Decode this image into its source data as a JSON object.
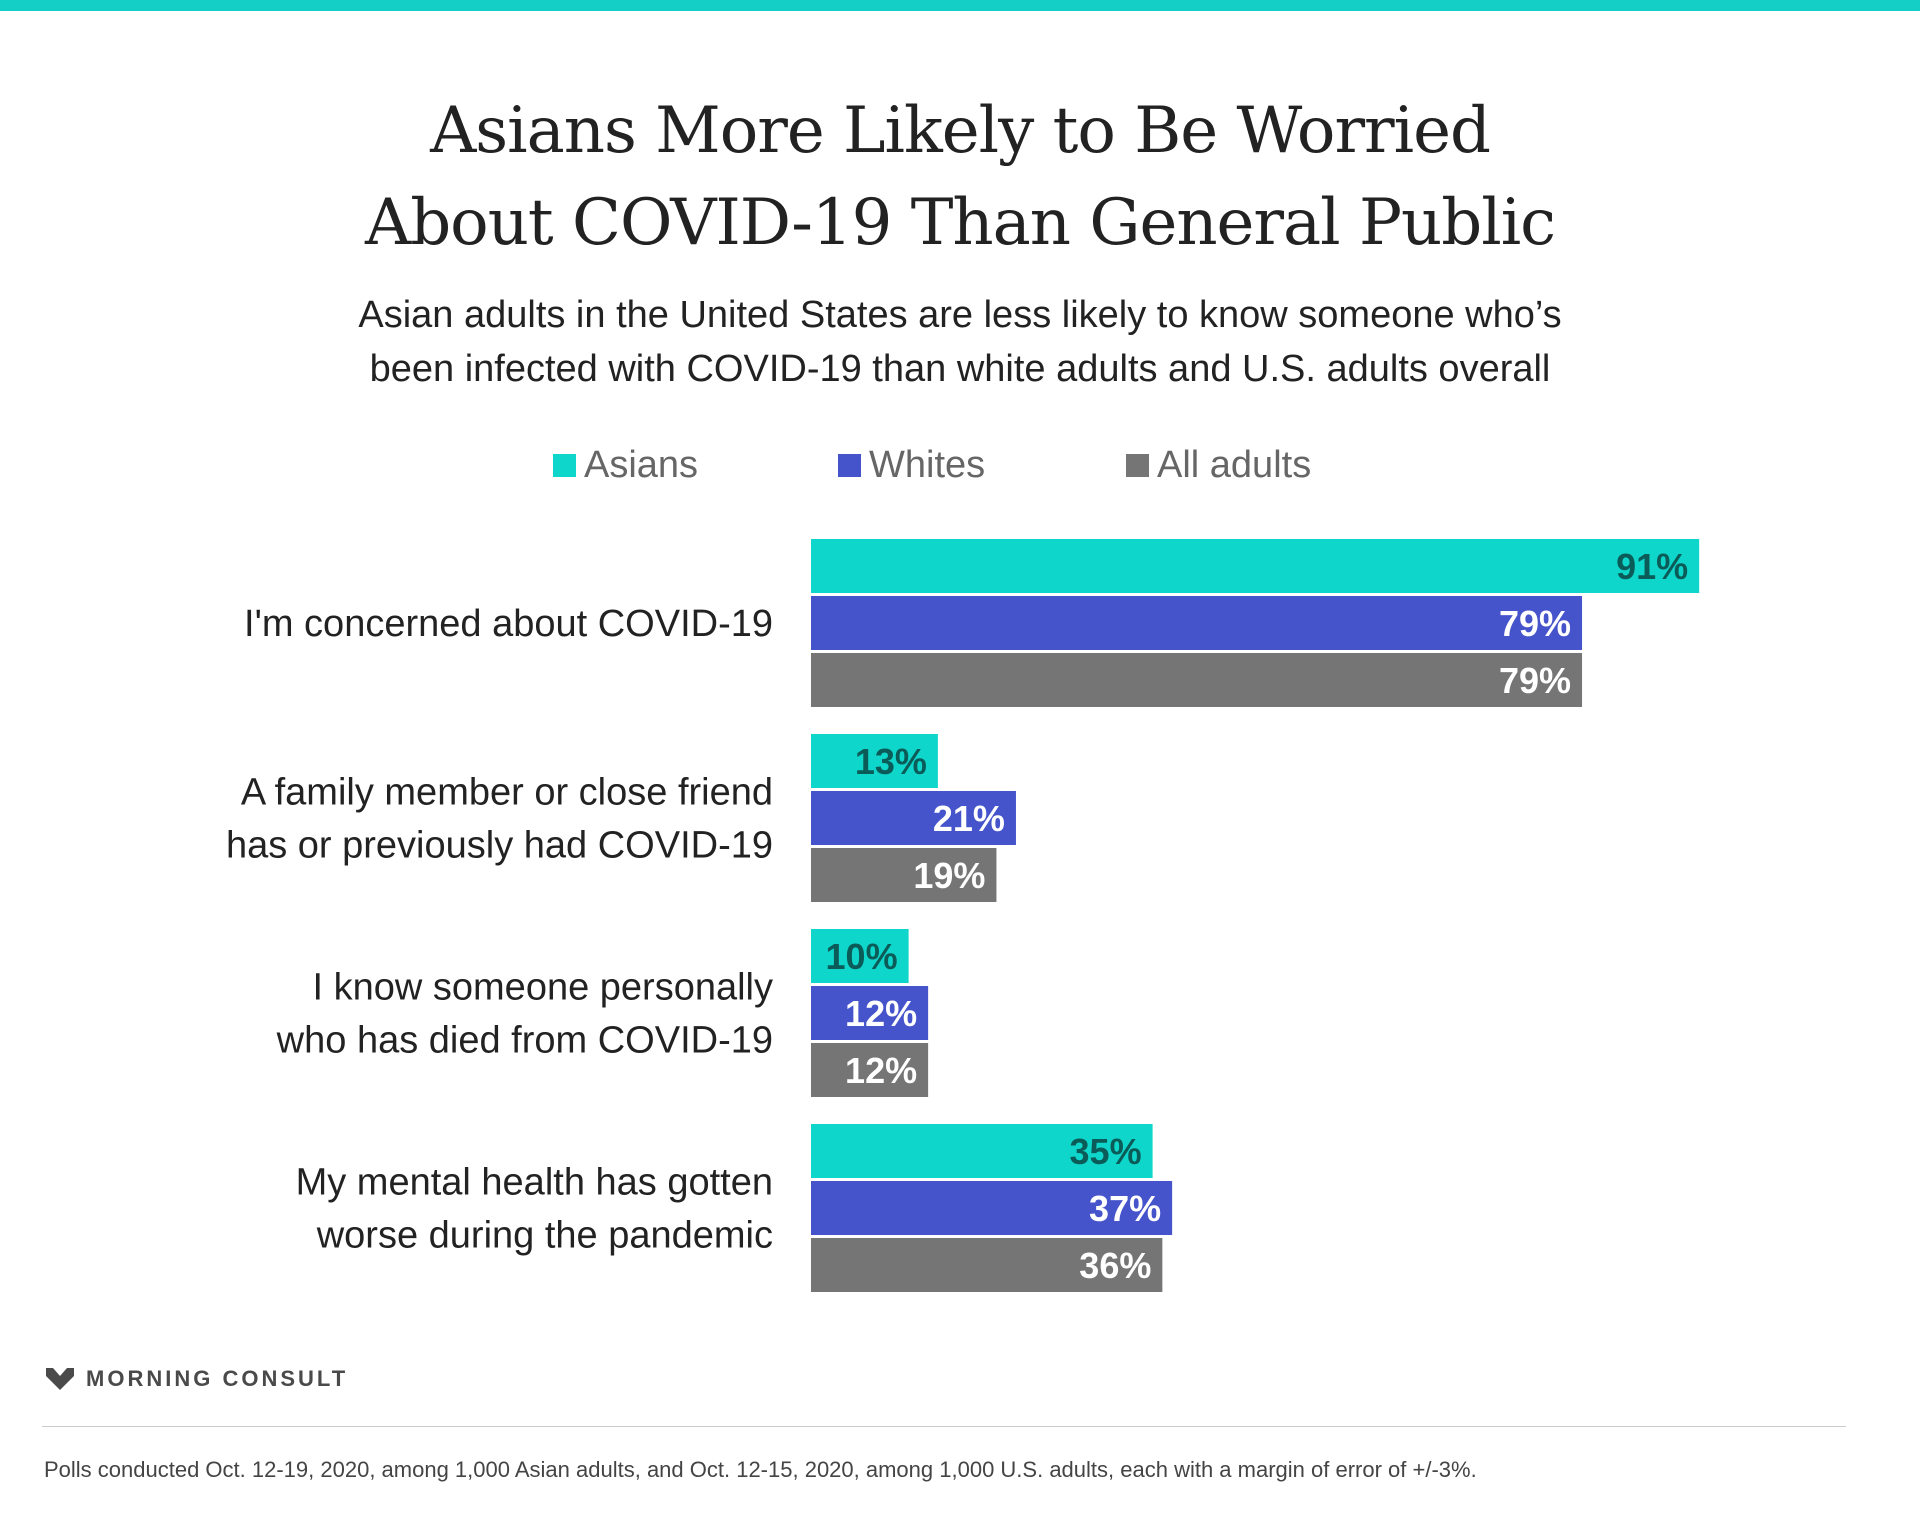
{
  "header": {
    "title_lines": [
      "Asians More Likely to Be Worried",
      "About COVID-19 Than General Public"
    ],
    "subtitle_lines": [
      "Asian adults in the United States are less likely to know someone who’s",
      "been infected with COVID-19 than white adults and U.S. adults overall"
    ]
  },
  "colors": {
    "accent": "#13cfc5",
    "asians": "#0fd6cb",
    "whites": "#4654cc",
    "all_adults": "#757575"
  },
  "chart_data": {
    "type": "bar",
    "orientation": "horizontal",
    "categories": [
      [
        "I'm concerned about COVID-19"
      ],
      [
        "A family member or close friend",
        "has or previously had COVID-19"
      ],
      [
        "I know someone personally",
        "who has died from COVID-19"
      ],
      [
        "My mental health has gotten",
        "worse during the pandemic"
      ]
    ],
    "series": [
      {
        "name": "Asians",
        "color": "#0fd6cb",
        "values": [
          91,
          13,
          10,
          35
        ],
        "labels": [
          "91%",
          "13%",
          "10%",
          "35%"
        ],
        "label_color": "#0b5c58"
      },
      {
        "name": "Whites",
        "color": "#4654cc",
        "values": [
          79,
          21,
          12,
          37
        ],
        "labels": [
          "79%",
          "21%",
          "12%",
          "37%"
        ],
        "label_color": "#ffffff"
      },
      {
        "name": "All adults",
        "color": "#757575",
        "values": [
          79,
          19,
          12,
          36
        ],
        "labels": [
          "79%",
          "19%",
          "12%",
          "36%"
        ],
        "label_color": "#ffffff"
      }
    ],
    "xlim": [
      0,
      100
    ],
    "grid": false,
    "legend_position": "top-center"
  },
  "branding": {
    "logo_text": "MORNING CONSULT"
  },
  "footnote": "Polls conducted Oct. 12-19, 2020, among 1,000 Asian adults, and Oct. 12-15, 2020, among 1,000 U.S. adults, each with a margin of error of +/-3%."
}
